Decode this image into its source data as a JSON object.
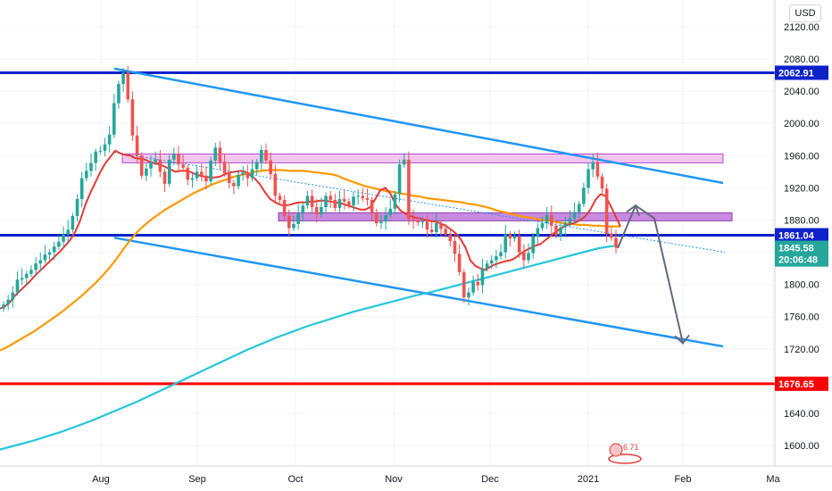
{
  "currency": "USD",
  "colors": {
    "grid": "#f0f3fa",
    "axis_text": "#131722",
    "candle_up": "#26a69a",
    "candle_down": "#ef5350",
    "ema_fast": "#e53935",
    "ema_mid": "#ff9800",
    "ema_slow": "#26c6da",
    "channel": "#2196f3",
    "resistance_line": "#0d22c9",
    "support_line": "#ff0000",
    "zone_light": "#f3c6ef",
    "zone_dark": "#c98ae0",
    "projection": "#616a7d"
  },
  "watermark_text": "6 71",
  "chart_data": {
    "type": "candlestick",
    "title": "",
    "xlabel": "",
    "ylabel": "",
    "x_ticks": [
      "Aug",
      "Sep",
      "Oct",
      "Nov",
      "Dec",
      "2021",
      "Feb",
      "Ma"
    ],
    "y_ticks": [
      1600.0,
      1640.0,
      1680.0,
      1720.0,
      1760.0,
      1800.0,
      1840.0,
      1880.0,
      1920.0,
      1960.0,
      2000.0,
      2040.0,
      2080.0,
      2120.0
    ],
    "ylim": [
      1564,
      2140
    ],
    "horizontal_levels": [
      {
        "value": 2062.91,
        "label": "2062.91",
        "color": "#0d22c9"
      },
      {
        "value": 1861.04,
        "label": "1861.04",
        "color": "#0d22c9"
      },
      {
        "value": 1676.65,
        "label": "1676.65",
        "color": "#ff0000"
      }
    ],
    "price_labels": [
      {
        "value": 1861.04,
        "label": "1861.04",
        "color": "#0d22c9"
      },
      {
        "value": 1845.58,
        "label": "1845.58",
        "color": "#26a69a"
      },
      {
        "value": 1831.0,
        "label": "20:06:48",
        "color": "#26a69a"
      }
    ],
    "closes": [
      1775,
      1781,
      1790,
      1806,
      1808,
      1813,
      1818,
      1826,
      1830,
      1837,
      1840,
      1847,
      1853,
      1862,
      1868,
      1885,
      1906,
      1932,
      1941,
      1951,
      1965,
      1966,
      1974,
      1986,
      2025,
      2049,
      2063,
      2030,
      1985,
      1960,
      1935,
      1944,
      1952,
      1955,
      1940,
      1925,
      1955,
      1962,
      1949,
      1945,
      1930,
      1932,
      1940,
      1935,
      1928,
      1954,
      1970,
      1952,
      1938,
      1926,
      1922,
      1936,
      1939,
      1932,
      1943,
      1952,
      1967,
      1954,
      1937,
      1910,
      1905,
      1885,
      1870,
      1875,
      1888,
      1898,
      1910,
      1896,
      1887,
      1896,
      1910,
      1905,
      1895,
      1906,
      1903,
      1898,
      1909,
      1910,
      1907,
      1905,
      1888,
      1876,
      1878,
      1886,
      1894,
      1912,
      1949,
      1955,
      1881,
      1879,
      1877,
      1878,
      1868,
      1865,
      1876,
      1869,
      1862,
      1854,
      1838,
      1815,
      1784,
      1790,
      1803,
      1799,
      1820,
      1826,
      1830,
      1835,
      1840,
      1862,
      1857,
      1860,
      1840,
      1830,
      1839,
      1860,
      1870,
      1876,
      1886,
      1873,
      1861,
      1871,
      1876,
      1882,
      1890,
      1900,
      1920,
      1943,
      1952,
      1934,
      1919,
      1863,
      1858,
      1845.58
    ],
    "ema_fast": [
      1770,
      1773,
      1778,
      1786,
      1792,
      1798,
      1804,
      1811,
      1817,
      1823,
      1829,
      1835,
      1841,
      1848,
      1855,
      1865,
      1879,
      1898,
      1913,
      1926,
      1939,
      1950,
      1958,
      1966,
      1963,
      1961,
      1960,
      1957,
      1956,
      1955,
      1952,
      1950,
      1949,
      1946,
      1943,
      1940,
      1941,
      1941,
      1940,
      1937,
      1935,
      1934,
      1933,
      1933,
      1934,
      1937,
      1939,
      1940,
      1941,
      1940,
      1936,
      1931,
      1924,
      1914,
      1906,
      1902,
      1899,
      1898,
      1899,
      1901,
      1902,
      1902,
      1903,
      1903,
      1904,
      1904,
      1903,
      1902,
      1901,
      1899,
      1897,
      1895,
      1893,
      1893,
      1896,
      1906,
      1917,
      1920,
      1913,
      1900,
      1892,
      1888,
      1885,
      1883,
      1882,
      1880,
      1879,
      1878,
      1876,
      1873,
      1869,
      1864,
      1857,
      1846,
      1830,
      1823,
      1820,
      1818,
      1822,
      1825,
      1827,
      1829,
      1830,
      1833,
      1838,
      1842,
      1845,
      1848,
      1850,
      1855,
      1860,
      1865,
      1869,
      1873,
      1875,
      1877,
      1880,
      1885,
      1893,
      1905,
      1912,
      1910,
      1898,
      1885,
      1872
    ],
    "ema_mid": [
      1718,
      1722,
      1727,
      1732,
      1737,
      1742,
      1748,
      1754,
      1760,
      1766,
      1773,
      1780,
      1787,
      1795,
      1803,
      1812,
      1822,
      1833,
      1845,
      1856,
      1866,
      1874,
      1881,
      1887,
      1893,
      1898,
      1903,
      1908,
      1913,
      1917,
      1921,
      1925,
      1928,
      1931,
      1934,
      1936,
      1938,
      1940,
      1941,
      1942,
      1942,
      1942,
      1941,
      1941,
      1941,
      1940,
      1939,
      1938,
      1937,
      1935,
      1931,
      1928,
      1925,
      1922,
      1920,
      1918,
      1916,
      1915,
      1913,
      1912,
      1910,
      1909,
      1907,
      1906,
      1905,
      1904,
      1903,
      1902,
      1900,
      1899,
      1897,
      1895,
      1892,
      1890,
      1888,
      1886,
      1884,
      1883,
      1881,
      1880,
      1879,
      1877,
      1876,
      1875,
      1874,
      1874,
      1873,
      1873,
      1872,
      1872,
      1872
    ],
    "ema_slow": [
      1595,
      1600,
      1605,
      1611,
      1617,
      1624,
      1631,
      1639,
      1647,
      1655,
      1664,
      1673,
      1682,
      1691,
      1700,
      1709,
      1718,
      1726,
      1734,
      1741,
      1748,
      1754,
      1760,
      1766,
      1771,
      1776,
      1781,
      1786,
      1790,
      1795,
      1800,
      1805,
      1810,
      1815,
      1820,
      1825,
      1830,
      1835,
      1840,
      1845,
      1848
    ]
  }
}
